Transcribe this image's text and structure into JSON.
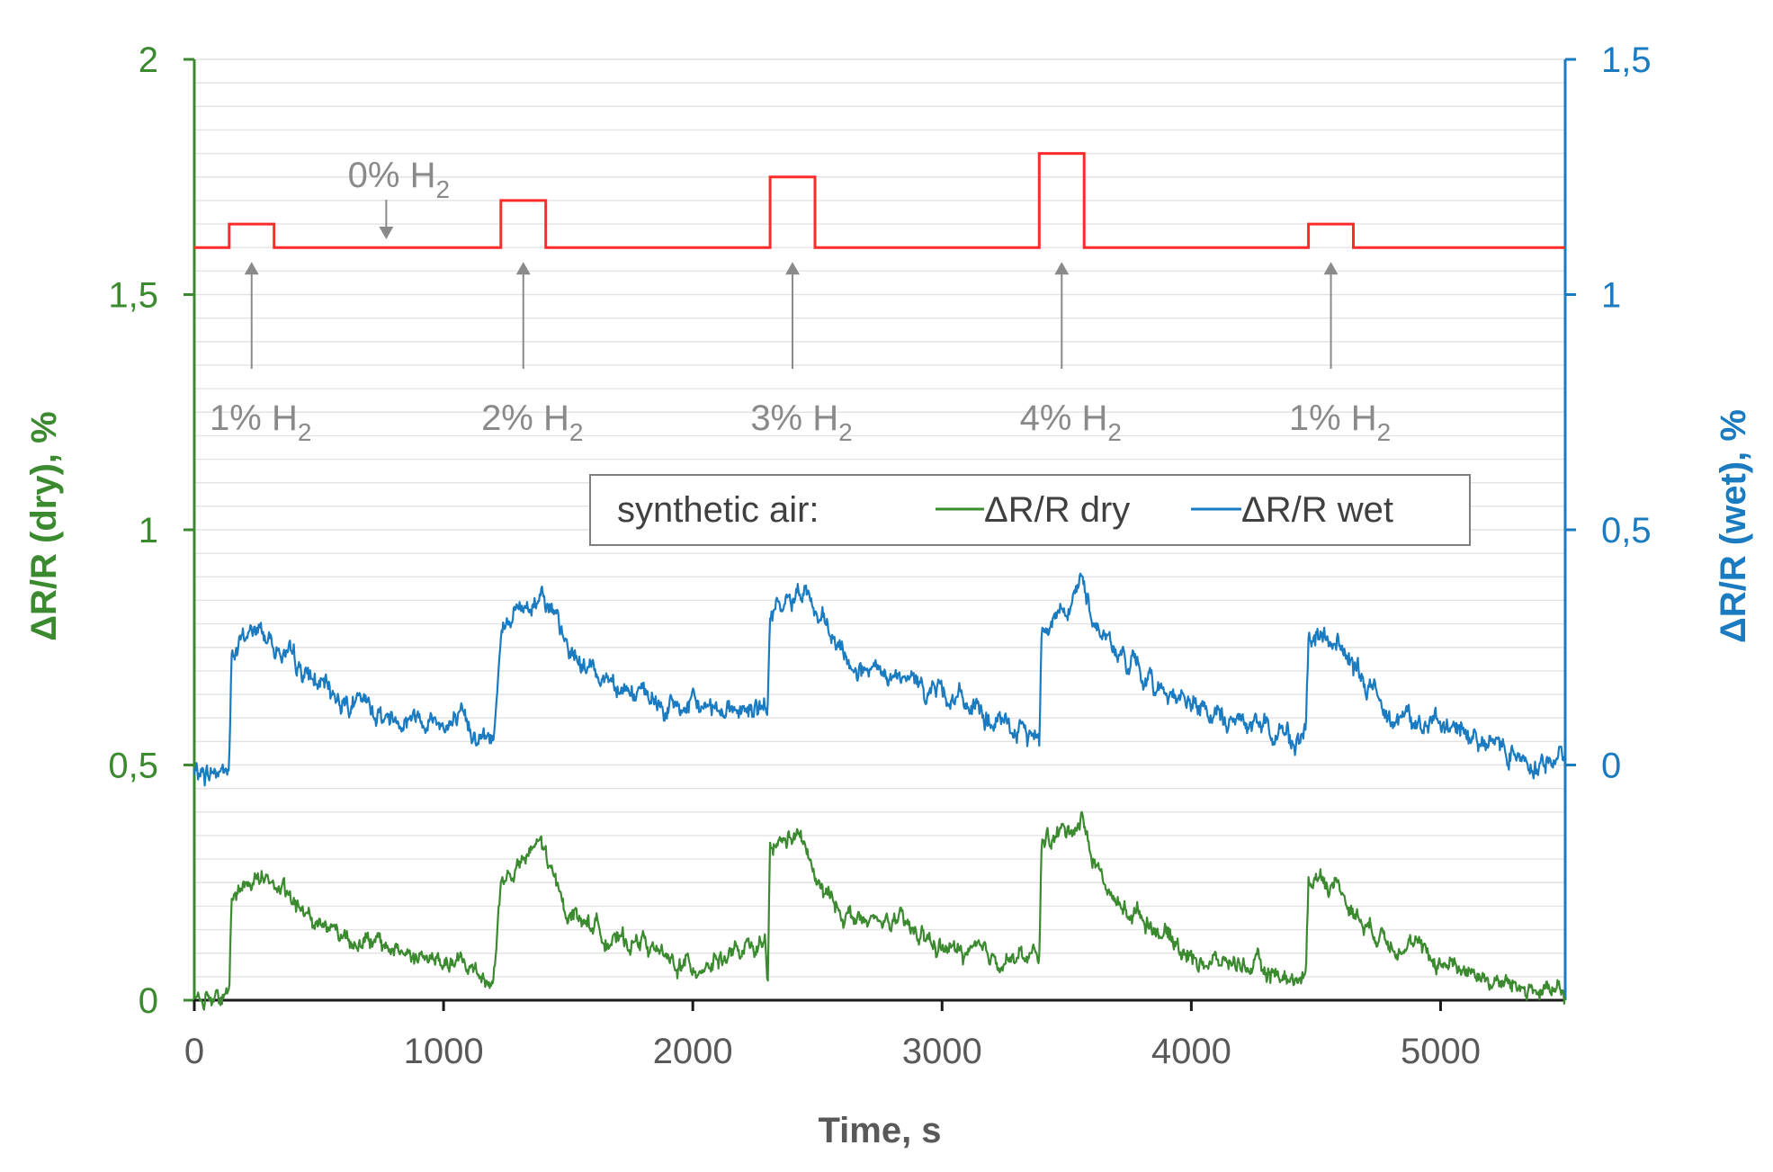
{
  "chart_data": {
    "type": "line",
    "title": "",
    "xlabel": "Time, s",
    "ylabel_left": "ΔR/R (dry), %",
    "ylabel_right": "ΔR/R (wet), %",
    "xlim": [
      0,
      5500
    ],
    "ylim_left": [
      0,
      2
    ],
    "ylim_right": [
      -0.5,
      1.5
    ],
    "x_ticks": [
      "0",
      "1000",
      "2000",
      "3000",
      "4000",
      "5000"
    ],
    "x_tick_values": [
      0,
      1000,
      2000,
      3000,
      4000,
      5000
    ],
    "y_left_ticks": [
      "0",
      "0,5",
      "1",
      "1,5",
      "2"
    ],
    "y_left_tick_values": [
      0,
      0.5,
      1,
      1.5,
      2
    ],
    "y_right_ticks": [
      "0",
      "0,5",
      "1",
      "1,5"
    ],
    "y_right_tick_values": [
      0,
      0.5,
      1,
      1.5
    ],
    "legend": {
      "title": "synthetic air:",
      "items": [
        "ΔR/R dry",
        "ΔR/R wet"
      ]
    },
    "colors": {
      "dry": "#3b8a2f",
      "wet": "#1a7bc0",
      "h2": "#ff2a2a",
      "annotation": "#8a8a8a",
      "grid": "#e3e3e3"
    },
    "series": [
      {
        "name": "ΔR/R dry",
        "axis": "left",
        "x": [
          0,
          140,
          150,
          200,
          250,
          300,
          400,
          500,
          600,
          700,
          800,
          900,
          1000,
          1100,
          1200,
          1230,
          1300,
          1350,
          1390,
          1450,
          1500,
          1600,
          1700,
          1800,
          1900,
          2000,
          2100,
          2200,
          2290,
          2300,
          2310,
          2350,
          2400,
          2450,
          2500,
          2600,
          2700,
          2800,
          2900,
          3000,
          3100,
          3200,
          3300,
          3390,
          3400,
          3450,
          3500,
          3560,
          3600,
          3700,
          3800,
          3900,
          4000,
          4100,
          4200,
          4300,
          4400,
          4460,
          4470,
          4500,
          4550,
          4600,
          4650,
          4700,
          4800,
          4900,
          5000,
          5100,
          5200,
          5300,
          5400,
          5500
        ],
        "y": [
          0.01,
          0.01,
          0.22,
          0.24,
          0.27,
          0.26,
          0.2,
          0.17,
          0.14,
          0.12,
          0.11,
          0.09,
          0.08,
          0.07,
          0.04,
          0.25,
          0.28,
          0.31,
          0.34,
          0.24,
          0.19,
          0.16,
          0.12,
          0.13,
          0.08,
          0.07,
          0.09,
          0.1,
          0.11,
          0.01,
          0.32,
          0.33,
          0.35,
          0.33,
          0.24,
          0.19,
          0.16,
          0.17,
          0.14,
          0.11,
          0.1,
          0.09,
          0.09,
          0.09,
          0.34,
          0.35,
          0.36,
          0.39,
          0.31,
          0.2,
          0.18,
          0.14,
          0.09,
          0.08,
          0.08,
          0.06,
          0.05,
          0.04,
          0.25,
          0.27,
          0.25,
          0.24,
          0.19,
          0.16,
          0.13,
          0.11,
          0.08,
          0.07,
          0.04,
          0.03,
          0.02,
          0.01
        ]
      },
      {
        "name": "ΔR/R wet",
        "axis": "right",
        "x": [
          0,
          140,
          150,
          200,
          250,
          300,
          400,
          500,
          600,
          700,
          800,
          900,
          1000,
          1100,
          1200,
          1230,
          1300,
          1350,
          1400,
          1450,
          1500,
          1600,
          1700,
          1800,
          1900,
          2000,
          2100,
          2200,
          2290,
          2300,
          2310,
          2350,
          2400,
          2450,
          2500,
          2600,
          2700,
          2800,
          2900,
          3000,
          3100,
          3200,
          3300,
          3390,
          3400,
          3450,
          3500,
          3560,
          3600,
          3700,
          3800,
          3900,
          4000,
          4100,
          4200,
          4300,
          4400,
          4460,
          4470,
          4500,
          4550,
          4600,
          4650,
          4700,
          4800,
          4900,
          5000,
          5100,
          5200,
          5300,
          5400,
          5500
        ],
        "y": [
          -0.02,
          -0.01,
          0.23,
          0.27,
          0.29,
          0.27,
          0.21,
          0.17,
          0.14,
          0.12,
          0.1,
          0.11,
          0.09,
          0.08,
          0.05,
          0.3,
          0.33,
          0.34,
          0.38,
          0.3,
          0.24,
          0.2,
          0.18,
          0.14,
          0.12,
          0.12,
          0.13,
          0.12,
          0.11,
          0.13,
          0.31,
          0.33,
          0.35,
          0.39,
          0.31,
          0.23,
          0.19,
          0.18,
          0.17,
          0.16,
          0.13,
          0.09,
          0.07,
          0.06,
          0.3,
          0.32,
          0.34,
          0.39,
          0.32,
          0.24,
          0.19,
          0.16,
          0.13,
          0.1,
          0.09,
          0.08,
          0.06,
          0.06,
          0.25,
          0.27,
          0.26,
          0.26,
          0.2,
          0.17,
          0.12,
          0.09,
          0.08,
          0.07,
          0.05,
          0.03,
          0.0,
          0.02
        ]
      },
      {
        "name": "H2 concentration",
        "axis": "left",
        "x": [
          0,
          140,
          140,
          320,
          320,
          1230,
          1230,
          1410,
          1410,
          2310,
          2310,
          2490,
          2490,
          3390,
          3390,
          3570,
          3570,
          4470,
          4470,
          4650,
          4650,
          5500
        ],
        "y": [
          1.6,
          1.6,
          1.65,
          1.65,
          1.6,
          1.6,
          1.7,
          1.7,
          1.6,
          1.6,
          1.75,
          1.75,
          1.6,
          1.6,
          1.8,
          1.8,
          1.6,
          1.6,
          1.65,
          1.65,
          1.6,
          1.6
        ]
      }
    ],
    "annotations": [
      {
        "label": "1%",
        "sub": "2",
        "x": 230
      },
      {
        "label": "2%",
        "sub": "2",
        "x": 1320
      },
      {
        "label": "3%",
        "sub": "2",
        "x": 2400
      },
      {
        "label": "4%",
        "sub": "2",
        "x": 3480
      },
      {
        "label": "1%",
        "sub": "2",
        "x": 4560
      }
    ],
    "baseline_annotation": {
      "label": "0%",
      "sub": "2",
      "x": 770
    },
    "gas_symbol": "H"
  }
}
